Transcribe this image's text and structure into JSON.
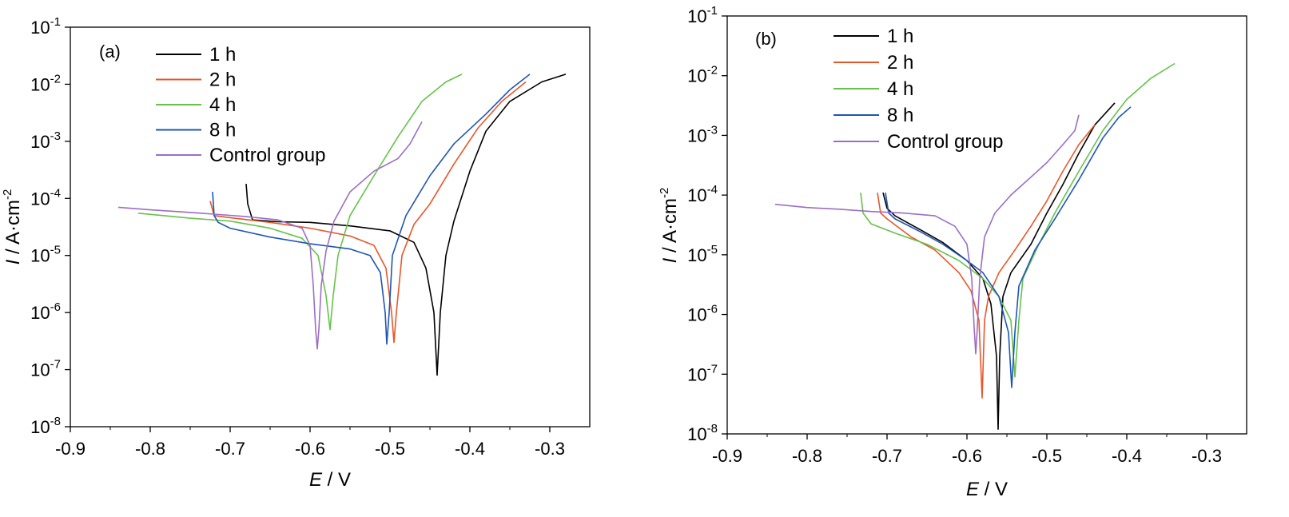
{
  "chart_data": [
    {
      "type": "line",
      "panel_label": "(a)",
      "xlabel_italic": "E",
      "xlabel_rest": " / V",
      "ylabel_italic": "I",
      "ylabel_rest": " / A·cm",
      "ylabel_exp": "-2",
      "xlim": [
        -0.9,
        -0.25
      ],
      "ylim": [
        1e-08,
        0.1
      ],
      "yscale": "log",
      "xticks": [
        "-0.9",
        "-0.8",
        "-0.7",
        "-0.6",
        "-0.5",
        "-0.4",
        "-0.3"
      ],
      "xtick_values": [
        -0.9,
        -0.8,
        -0.7,
        -0.6,
        -0.5,
        -0.4,
        -0.3
      ],
      "ytick_exponents": [
        "-8",
        "-7",
        "-6",
        "-5",
        "-4",
        "-3",
        "-2",
        "-1"
      ],
      "legend_position": "top-left",
      "series": [
        {
          "name": "1 h",
          "color": "#000000",
          "points": [
            [
              -0.68,
              0.00018
            ],
            [
              -0.678,
              8e-05
            ],
            [
              -0.672,
              4.2e-05
            ],
            [
              -0.64,
              3.9e-05
            ],
            [
              -0.6,
              3.8e-05
            ],
            [
              -0.55,
              3.3e-05
            ],
            [
              -0.5,
              2.7e-05
            ],
            [
              -0.47,
              1.7e-05
            ],
            [
              -0.455,
              6e-06
            ],
            [
              -0.445,
              1e-06
            ],
            [
              -0.441,
              8e-08
            ],
            [
              -0.437,
              1e-06
            ],
            [
              -0.43,
              1e-05
            ],
            [
              -0.42,
              4e-05
            ],
            [
              -0.4,
              0.0003
            ],
            [
              -0.38,
              0.0015
            ],
            [
              -0.35,
              0.005
            ],
            [
              -0.31,
              0.011
            ],
            [
              -0.28,
              0.015
            ]
          ]
        },
        {
          "name": "2 h",
          "color": "#e8562a",
          "points": [
            [
              -0.725,
              9e-05
            ],
            [
              -0.72,
              5e-05
            ],
            [
              -0.7,
              4.6e-05
            ],
            [
              -0.65,
              3.8e-05
            ],
            [
              -0.6,
              3e-05
            ],
            [
              -0.55,
              2.2e-05
            ],
            [
              -0.52,
              1.5e-05
            ],
            [
              -0.505,
              6e-06
            ],
            [
              -0.498,
              1e-06
            ],
            [
              -0.495,
              3e-07
            ],
            [
              -0.492,
              1e-06
            ],
            [
              -0.485,
              1e-05
            ],
            [
              -0.47,
              3.5e-05
            ],
            [
              -0.45,
              8e-05
            ],
            [
              -0.42,
              0.0004
            ],
            [
              -0.39,
              0.0017
            ],
            [
              -0.36,
              0.005
            ],
            [
              -0.33,
              0.011
            ]
          ]
        },
        {
          "name": "4 h",
          "color": "#66c24a",
          "points": [
            [
              -0.815,
              5.5e-05
            ],
            [
              -0.75,
              4.5e-05
            ],
            [
              -0.7,
              4e-05
            ],
            [
              -0.65,
              3e-05
            ],
            [
              -0.61,
              2e-05
            ],
            [
              -0.59,
              1e-05
            ],
            [
              -0.58,
              2e-06
            ],
            [
              -0.575,
              5e-07
            ],
            [
              -0.571,
              2e-06
            ],
            [
              -0.565,
              1e-05
            ],
            [
              -0.55,
              5e-05
            ],
            [
              -0.52,
              0.00025
            ],
            [
              -0.49,
              0.0012
            ],
            [
              -0.46,
              0.005
            ],
            [
              -0.43,
              0.011
            ],
            [
              -0.41,
              0.015
            ]
          ]
        },
        {
          "name": "8 h",
          "color": "#1f55b6",
          "points": [
            [
              -0.722,
              0.00013
            ],
            [
              -0.72,
              5e-05
            ],
            [
              -0.715,
              3.8e-05
            ],
            [
              -0.7,
              3e-05
            ],
            [
              -0.65,
              2.1e-05
            ],
            [
              -0.6,
              1.6e-05
            ],
            [
              -0.55,
              1.3e-05
            ],
            [
              -0.525,
              1e-05
            ],
            [
              -0.512,
              5e-06
            ],
            [
              -0.506,
              1e-06
            ],
            [
              -0.504,
              2.8e-07
            ],
            [
              -0.501,
              1e-06
            ],
            [
              -0.497,
              1e-05
            ],
            [
              -0.48,
              5e-05
            ],
            [
              -0.45,
              0.00025
            ],
            [
              -0.42,
              0.0009
            ],
            [
              -0.38,
              0.003
            ],
            [
              -0.35,
              0.008
            ],
            [
              -0.325,
              0.015
            ]
          ]
        },
        {
          "name": "Control group",
          "color": "#9b6ec5",
          "points": [
            [
              -0.84,
              7e-05
            ],
            [
              -0.8,
              6.3e-05
            ],
            [
              -0.76,
              5.8e-05
            ],
            [
              -0.72,
              5.3e-05
            ],
            [
              -0.68,
              4.8e-05
            ],
            [
              -0.64,
              4.2e-05
            ],
            [
              -0.61,
              3e-05
            ],
            [
              -0.6,
              1.5e-05
            ],
            [
              -0.596,
              3e-06
            ],
            [
              -0.593,
              5e-07
            ],
            [
              -0.591,
              2.3e-07
            ],
            [
              -0.589,
              5e-07
            ],
            [
              -0.586,
              3e-06
            ],
            [
              -0.58,
              1.2e-05
            ],
            [
              -0.57,
              4e-05
            ],
            [
              -0.55,
              0.00013
            ],
            [
              -0.52,
              0.0003
            ],
            [
              -0.49,
              0.0005
            ],
            [
              -0.475,
              0.0009
            ],
            [
              -0.46,
              0.0022
            ]
          ]
        }
      ]
    },
    {
      "type": "line",
      "panel_label": "(b)",
      "xlabel_italic": "E",
      "xlabel_rest": " / V",
      "ylabel_italic": "I",
      "ylabel_rest": " / A·cm",
      "ylabel_exp": "-2",
      "xlim": [
        -0.9,
        -0.25
      ],
      "ylim": [
        1e-08,
        0.1
      ],
      "yscale": "log",
      "xticks": [
        "-0.9",
        "-0.8",
        "-0.7",
        "-0.6",
        "-0.5",
        "-0.4",
        "-0.3"
      ],
      "xtick_values": [
        -0.9,
        -0.8,
        -0.7,
        -0.6,
        -0.5,
        -0.4,
        -0.3
      ],
      "ytick_exponents": [
        "-8",
        "-7",
        "-6",
        "-5",
        "-4",
        "-3",
        "-2",
        "-1"
      ],
      "legend_position": "top-left",
      "series": [
        {
          "name": "1 h",
          "color": "#000000",
          "points": [
            [
              -0.705,
              0.00011
            ],
            [
              -0.7,
              6e-05
            ],
            [
              -0.69,
              4.5e-05
            ],
            [
              -0.66,
              2.7e-05
            ],
            [
              -0.63,
              1.6e-05
            ],
            [
              -0.6,
              8e-06
            ],
            [
              -0.58,
              4e-06
            ],
            [
              -0.57,
              1.5e-06
            ],
            [
              -0.563,
              2e-07
            ],
            [
              -0.561,
              1.2e-08
            ],
            [
              -0.559,
              2e-07
            ],
            [
              -0.555,
              2e-06
            ],
            [
              -0.545,
              5e-06
            ],
            [
              -0.52,
              1.5e-05
            ],
            [
              -0.5,
              5e-05
            ],
            [
              -0.48,
              0.00015
            ],
            [
              -0.46,
              0.0005
            ],
            [
              -0.44,
              0.0015
            ],
            [
              -0.415,
              0.0035
            ]
          ]
        },
        {
          "name": "2 h",
          "color": "#e8562a",
          "points": [
            [
              -0.712,
              0.00011
            ],
            [
              -0.708,
              5e-05
            ],
            [
              -0.7,
              4e-05
            ],
            [
              -0.67,
              2e-05
            ],
            [
              -0.64,
              1.2e-05
            ],
            [
              -0.61,
              5e-06
            ],
            [
              -0.595,
              2.5e-06
            ],
            [
              -0.585,
              8e-07
            ],
            [
              -0.581,
              4e-08
            ],
            [
              -0.578,
              8e-07
            ],
            [
              -0.573,
              2e-06
            ],
            [
              -0.56,
              5e-06
            ],
            [
              -0.54,
              1.2e-05
            ],
            [
              -0.52,
              3e-05
            ],
            [
              -0.5,
              8e-05
            ],
            [
              -0.48,
              0.00025
            ],
            [
              -0.46,
              0.0007
            ],
            [
              -0.44,
              0.0015
            ]
          ]
        },
        {
          "name": "4 h",
          "color": "#66c24a",
          "points": [
            [
              -0.733,
              0.00011
            ],
            [
              -0.73,
              5e-05
            ],
            [
              -0.72,
              3.3e-05
            ],
            [
              -0.69,
              2.3e-05
            ],
            [
              -0.65,
              1.5e-05
            ],
            [
              -0.61,
              8e-06
            ],
            [
              -0.58,
              4e-06
            ],
            [
              -0.56,
              2e-06
            ],
            [
              -0.545,
              8e-07
            ],
            [
              -0.54,
              9e-08
            ],
            [
              -0.535,
              8e-07
            ],
            [
              -0.53,
              4e-06
            ],
            [
              -0.51,
              1.5e-05
            ],
            [
              -0.49,
              5e-05
            ],
            [
              -0.46,
              0.00025
            ],
            [
              -0.43,
              0.0012
            ],
            [
              -0.4,
              0.004
            ],
            [
              -0.37,
              0.009
            ],
            [
              -0.34,
              0.016
            ]
          ]
        },
        {
          "name": "8 h",
          "color": "#1f55b6",
          "points": [
            [
              -0.702,
              0.00011
            ],
            [
              -0.698,
              5e-05
            ],
            [
              -0.69,
              4e-05
            ],
            [
              -0.66,
              2.5e-05
            ],
            [
              -0.63,
              1.5e-05
            ],
            [
              -0.6,
              8e-06
            ],
            [
              -0.58,
              5e-06
            ],
            [
              -0.56,
              2e-06
            ],
            [
              -0.548,
              5e-07
            ],
            [
              -0.544,
              6e-08
            ],
            [
              -0.54,
              5e-07
            ],
            [
              -0.535,
              3e-06
            ],
            [
              -0.515,
              1.2e-05
            ],
            [
              -0.49,
              4e-05
            ],
            [
              -0.46,
              0.00018
            ],
            [
              -0.43,
              0.0009
            ],
            [
              -0.41,
              0.002
            ],
            [
              -0.395,
              0.003
            ]
          ]
        },
        {
          "name": "Control group",
          "color": "#9b6ec5",
          "points": [
            [
              -0.84,
              7e-05
            ],
            [
              -0.8,
              6.2e-05
            ],
            [
              -0.76,
              5.8e-05
            ],
            [
              -0.72,
              5.3e-05
            ],
            [
              -0.68,
              5e-05
            ],
            [
              -0.64,
              4.5e-05
            ],
            [
              -0.615,
              3e-05
            ],
            [
              -0.6,
              1.5e-05
            ],
            [
              -0.594,
              4e-06
            ],
            [
              -0.591,
              6e-07
            ],
            [
              -0.589,
              2.2e-07
            ],
            [
              -0.587,
              6e-07
            ],
            [
              -0.584,
              4e-06
            ],
            [
              -0.578,
              2e-05
            ],
            [
              -0.565,
              5e-05
            ],
            [
              -0.545,
              0.0001
            ],
            [
              -0.52,
              0.0002
            ],
            [
              -0.5,
              0.00035
            ],
            [
              -0.48,
              0.0007
            ],
            [
              -0.465,
              0.0012
            ],
            [
              -0.46,
              0.0022
            ]
          ]
        }
      ]
    }
  ]
}
